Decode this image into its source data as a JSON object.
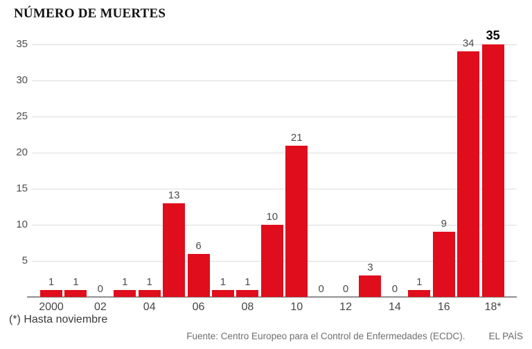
{
  "title": "NÚMERO DE MUERTES",
  "footnote": "(*) Hasta noviembre",
  "source": "Fuente: Centro Europeo para el Control de Enfermedades (ECDC).",
  "brand": "EL PAÍS",
  "colors": {
    "bar": "#e00d1c",
    "grid": "#dcdcdc",
    "axis": "#8f8f8f",
    "label": "#4c4c4c",
    "emphasis": "#000000"
  },
  "chart_data": {
    "type": "bar",
    "title": "NÚMERO DE MUERTES",
    "categories": [
      "2000",
      "2001",
      "2002",
      "2003",
      "2004",
      "2005",
      "2006",
      "2007",
      "2008",
      "2009",
      "2010",
      "2011",
      "2012",
      "2013",
      "2014",
      "2015",
      "2016",
      "2017",
      "2018"
    ],
    "values": [
      1,
      1,
      0,
      1,
      1,
      13,
      6,
      1,
      1,
      10,
      21,
      0,
      0,
      3,
      0,
      1,
      9,
      34,
      35
    ],
    "xlabel": "",
    "ylabel": "",
    "ylim": [
      0,
      35
    ],
    "yticks": [
      5,
      10,
      15,
      20,
      25,
      30,
      35
    ],
    "grid": true,
    "legend_position": "none",
    "emphasized_index": 18,
    "x_ticks": [
      {
        "index": 0,
        "label": "2000"
      },
      {
        "index": 2,
        "label": "02"
      },
      {
        "index": 4,
        "label": "04"
      },
      {
        "index": 6,
        "label": "06"
      },
      {
        "index": 8,
        "label": "08"
      },
      {
        "index": 10,
        "label": "10"
      },
      {
        "index": 12,
        "label": "12"
      },
      {
        "index": 14,
        "label": "14"
      },
      {
        "index": 16,
        "label": "16"
      },
      {
        "index": 18,
        "label": "18*"
      }
    ]
  }
}
